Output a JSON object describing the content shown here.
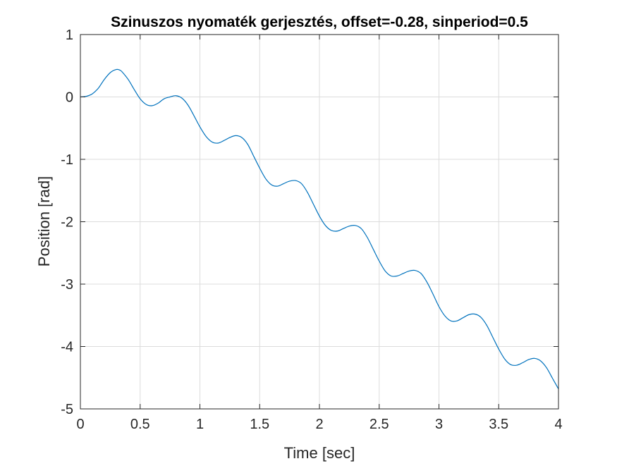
{
  "chart_data": {
    "type": "line",
    "title": "Szinuszos nyomaték gerjesztés, offset=-0.28, sinperiod=0.5",
    "xlabel": "Time [sec]",
    "ylabel": "Position [rad]",
    "xlim": [
      0,
      4
    ],
    "ylim": [
      -5,
      1
    ],
    "grid": true,
    "x_ticks": [
      0,
      0.5,
      1,
      1.5,
      2,
      2.5,
      3,
      3.5,
      4
    ],
    "x_tick_labels": [
      "0",
      "0.5",
      "1",
      "1.5",
      "2",
      "2.5",
      "3",
      "3.5",
      "4"
    ],
    "y_ticks": [
      1,
      0,
      -1,
      -2,
      -3,
      -4,
      -5
    ],
    "y_tick_labels": [
      "1",
      "0",
      "-1",
      "-2",
      "-3",
      "-4",
      "-5"
    ],
    "line_color": "#0072BD",
    "series": [
      {
        "x": [
          0,
          0.05,
          0.1,
          0.15,
          0.2,
          0.25,
          0.3,
          0.33,
          0.35,
          0.4,
          0.45,
          0.5,
          0.55,
          0.6,
          0.65,
          0.7,
          0.75,
          0.8,
          0.85,
          0.9,
          0.95,
          1.0,
          1.05,
          1.1,
          1.15,
          1.2,
          1.25,
          1.3,
          1.35,
          1.4,
          1.45,
          1.5,
          1.55,
          1.6,
          1.65,
          1.7,
          1.75,
          1.8,
          1.85,
          1.9,
          1.95,
          2.0,
          2.05,
          2.1,
          2.15,
          2.2,
          2.25,
          2.3,
          2.35,
          2.4,
          2.45,
          2.5,
          2.55,
          2.6,
          2.65,
          2.7,
          2.75,
          2.8,
          2.85,
          2.9,
          2.95,
          3.0,
          3.05,
          3.1,
          3.15,
          3.2,
          3.25,
          3.3,
          3.35,
          3.4,
          3.45,
          3.5,
          3.55,
          3.6,
          3.65,
          3.7,
          3.75,
          3.8,
          3.85,
          3.9,
          3.95,
          4.0
        ],
        "y": [
          0.0,
          0.01,
          0.05,
          0.14,
          0.28,
          0.39,
          0.44,
          0.43,
          0.4,
          0.28,
          0.12,
          -0.03,
          -0.12,
          -0.14,
          -0.1,
          -0.03,
          0.0,
          0.02,
          -0.02,
          -0.13,
          -0.3,
          -0.48,
          -0.63,
          -0.72,
          -0.74,
          -0.7,
          -0.65,
          -0.62,
          -0.65,
          -0.76,
          -0.95,
          -1.14,
          -1.31,
          -1.41,
          -1.43,
          -1.39,
          -1.35,
          -1.34,
          -1.39,
          -1.53,
          -1.72,
          -1.91,
          -2.06,
          -2.14,
          -2.15,
          -2.11,
          -2.07,
          -2.06,
          -2.11,
          -2.25,
          -2.44,
          -2.63,
          -2.79,
          -2.87,
          -2.87,
          -2.83,
          -2.79,
          -2.78,
          -2.83,
          -2.97,
          -3.16,
          -3.36,
          -3.51,
          -3.59,
          -3.59,
          -3.54,
          -3.49,
          -3.48,
          -3.53,
          -3.66,
          -3.85,
          -4.04,
          -4.2,
          -4.29,
          -4.3,
          -4.26,
          -4.21,
          -4.19,
          -4.23,
          -4.34,
          -4.51,
          -4.68
        ]
      }
    ]
  }
}
